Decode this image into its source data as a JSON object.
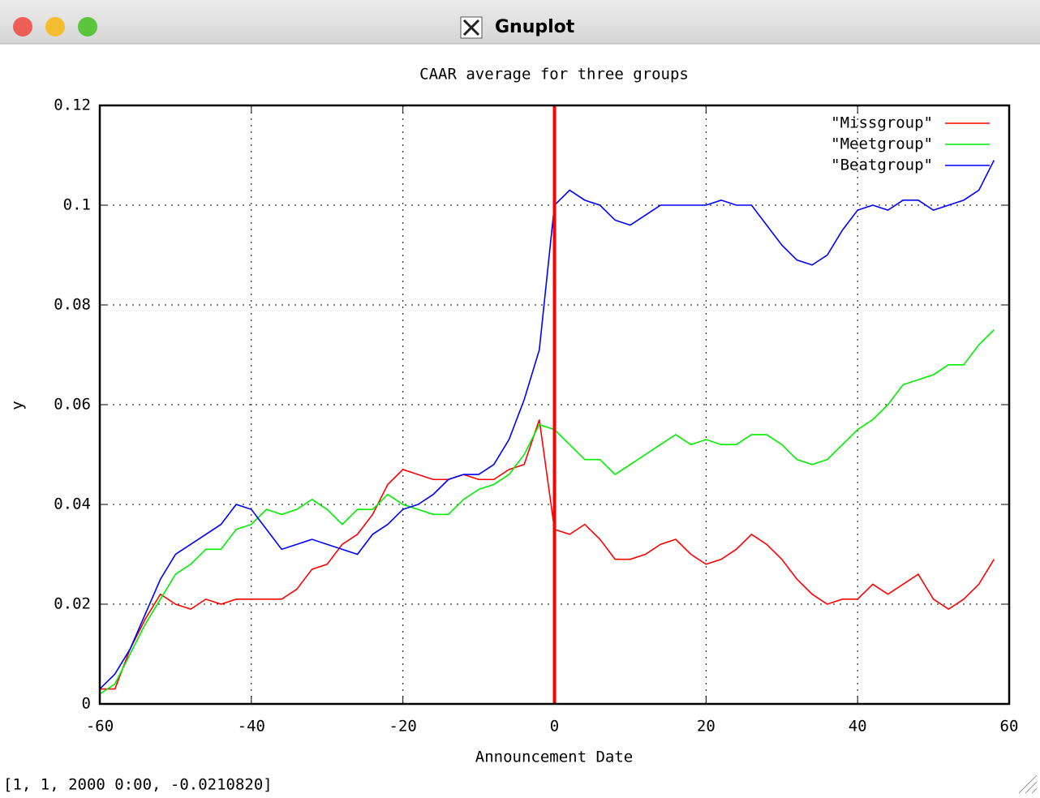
{
  "window": {
    "title": "Gnuplot",
    "status": "[1, 1, 2000 0:00, -0.0210820]"
  },
  "chart_data": {
    "type": "line",
    "title": "CAAR average for three groups",
    "x_label": "Announcement Date",
    "y_label": "y",
    "x": [
      -60,
      -58,
      -56,
      -54,
      -52,
      -50,
      -48,
      -46,
      -44,
      -42,
      -40,
      -38,
      -36,
      -34,
      -32,
      -30,
      -28,
      -26,
      -24,
      -22,
      -20,
      -18,
      -16,
      -14,
      -12,
      -10,
      -8,
      -6,
      -4,
      -2,
      0,
      2,
      4,
      6,
      8,
      10,
      12,
      14,
      16,
      18,
      20,
      22,
      24,
      26,
      28,
      30,
      32,
      34,
      36,
      38,
      40,
      42,
      44,
      46,
      48,
      50,
      52,
      54,
      56,
      58
    ],
    "series": [
      {
        "name": "\"Missgroup\"",
        "color": "#ff0000",
        "values": [
          0.003,
          0.003,
          0.011,
          0.017,
          0.022,
          0.02,
          0.019,
          0.021,
          0.02,
          0.021,
          0.021,
          0.021,
          0.021,
          0.023,
          0.027,
          0.028,
          0.032,
          0.034,
          0.038,
          0.044,
          0.047,
          0.046,
          0.045,
          0.045,
          0.046,
          0.045,
          0.045,
          0.047,
          0.048,
          0.057,
          0.035,
          0.034,
          0.036,
          0.033,
          0.029,
          0.029,
          0.03,
          0.032,
          0.033,
          0.03,
          0.028,
          0.029,
          0.031,
          0.034,
          0.032,
          0.029,
          0.025,
          0.022,
          0.02,
          0.021,
          0.021,
          0.024,
          0.022,
          0.024,
          0.026,
          0.021,
          0.019,
          0.021,
          0.024,
          0.029
        ]
      },
      {
        "name": "\"Meetgroup\"",
        "color": "#00ee00",
        "values": [
          0.002,
          0.004,
          0.01,
          0.016,
          0.021,
          0.026,
          0.028,
          0.031,
          0.031,
          0.035,
          0.036,
          0.039,
          0.038,
          0.039,
          0.041,
          0.039,
          0.036,
          0.039,
          0.039,
          0.042,
          0.04,
          0.039,
          0.038,
          0.038,
          0.041,
          0.043,
          0.044,
          0.046,
          0.05,
          0.056,
          0.055,
          0.052,
          0.049,
          0.049,
          0.046,
          0.048,
          0.05,
          0.052,
          0.054,
          0.052,
          0.053,
          0.052,
          0.052,
          0.054,
          0.054,
          0.052,
          0.049,
          0.048,
          0.049,
          0.052,
          0.055,
          0.057,
          0.06,
          0.064,
          0.065,
          0.066,
          0.068,
          0.068,
          0.072,
          0.075
        ]
      },
      {
        "name": "\"Beatgroup\"",
        "color": "#0000ff",
        "values": [
          0.003,
          0.006,
          0.011,
          0.018,
          0.025,
          0.03,
          0.032,
          0.034,
          0.036,
          0.04,
          0.039,
          0.035,
          0.031,
          0.032,
          0.033,
          0.032,
          0.031,
          0.03,
          0.034,
          0.036,
          0.039,
          0.04,
          0.042,
          0.045,
          0.046,
          0.046,
          0.048,
          0.053,
          0.061,
          0.071,
          0.1,
          0.103,
          0.101,
          0.1,
          0.097,
          0.096,
          0.098,
          0.1,
          0.1,
          0.1,
          0.1,
          0.101,
          0.1,
          0.1,
          0.096,
          0.092,
          0.089,
          0.088,
          0.09,
          0.095,
          0.099,
          0.1,
          0.099,
          0.101,
          0.101,
          0.099,
          0.1,
          0.101,
          0.103,
          0.109
        ]
      }
    ],
    "vline_x": 0,
    "vline_color": "#ff0000",
    "xlim": [
      -60,
      60
    ],
    "xticks": [
      -60,
      -40,
      -20,
      0,
      20,
      40,
      60
    ],
    "ylim": [
      0,
      0.12
    ],
    "yticks": [
      0,
      0.02,
      0.04,
      0.06,
      0.08,
      0.1,
      0.12
    ],
    "grid": true,
    "legend": "top-right"
  }
}
